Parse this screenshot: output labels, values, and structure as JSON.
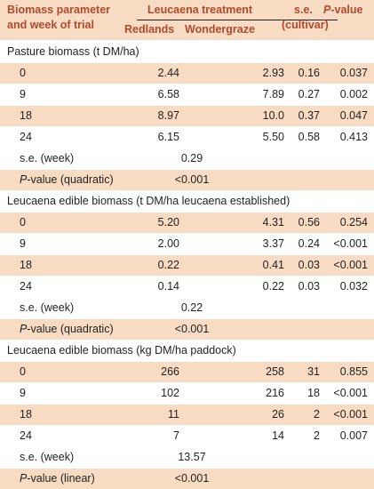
{
  "header": {
    "col0_line1": "Biomass parameter",
    "col0_line2": "and week of trial",
    "group_label": "Leucaena treatment",
    "col1": "Redlands",
    "col2": "Wondergraze",
    "se_line1": "s.e.",
    "se_line2": "(cultivar)",
    "pvalue_prefix": "P",
    "pvalue_suffix": "-value"
  },
  "sections": [
    {
      "title": "Pasture biomass (t DM/ha)",
      "rows": [
        {
          "week": "0",
          "redlands": "2.44",
          "wondergraze": "2.93",
          "se": "0.16",
          "p": "0.037"
        },
        {
          "week": "9",
          "redlands": "6.58",
          "wondergraze": "7.89",
          "se": "0.27",
          "p": "0.002"
        },
        {
          "week": "18",
          "redlands": "8.97",
          "wondergraze": "10.0",
          "se": "0.37",
          "p": "0.047"
        },
        {
          "week": "24",
          "redlands": "6.15",
          "wondergraze": "5.50",
          "se": "0.58",
          "p": "0.413"
        }
      ],
      "se_week_label": "s.e. (week)",
      "se_week_value": "0.29",
      "p_label_prefix": "P",
      "p_label_suffix": "-value (quadratic)",
      "p_value": "<0.001"
    },
    {
      "title": "Leucaena edible biomass (t DM/ha leucaena established)",
      "rows": [
        {
          "week": "0",
          "redlands": "5.20",
          "wondergraze": "4.31",
          "se": "0.56",
          "p": "0.254"
        },
        {
          "week": "9",
          "redlands": "2.00",
          "wondergraze": "3.37",
          "se": "0.24",
          "p": "<0.001"
        },
        {
          "week": "18",
          "redlands": "0.22",
          "wondergraze": "0.41",
          "se": "0.03",
          "p": "<0.001"
        },
        {
          "week": "24",
          "redlands": "0.14",
          "wondergraze": "0.22",
          "se": "0.03",
          "p": "0.032"
        }
      ],
      "se_week_label": "s.e. (week)",
      "se_week_value": "0.22",
      "p_label_prefix": "P",
      "p_label_suffix": "-value (quadratic)",
      "p_value": "<0.001"
    },
    {
      "title": "Leucaena edible biomass (kg DM/ha paddock)",
      "rows": [
        {
          "week": "0",
          "redlands": "266",
          "wondergraze": "258",
          "se": "31",
          "p": "0.855"
        },
        {
          "week": "9",
          "redlands": "102",
          "wondergraze": "216",
          "se": "18",
          "p": "<0.001"
        },
        {
          "week": "18",
          "redlands": "11",
          "wondergraze": "26",
          "se": "2",
          "p": "<0.001"
        },
        {
          "week": "24",
          "redlands": "7",
          "wondergraze": "14",
          "se": "2",
          "p": "0.007"
        }
      ],
      "se_week_label": "s.e. (week)",
      "se_week_value": "13.57",
      "p_label_prefix": "P",
      "p_label_suffix": "-value (linear)",
      "p_value": "<0.001"
    }
  ],
  "colors": {
    "header_bg": "#f7dcc3",
    "header_text": "#b04a2e",
    "body_text": "#231f20"
  }
}
